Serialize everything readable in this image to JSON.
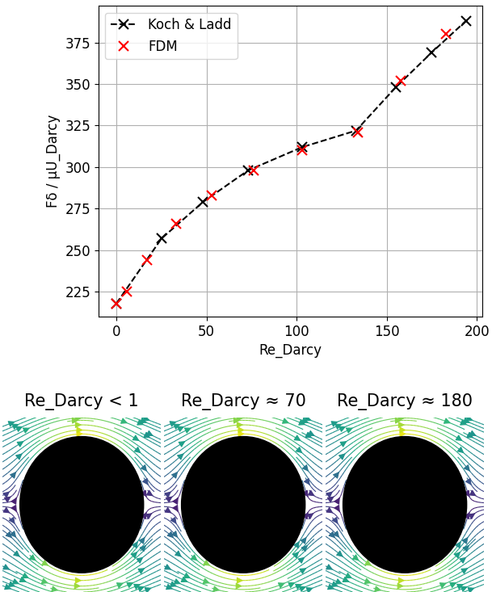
{
  "chart_data": [
    {
      "type": "line",
      "x_label": "Re_Darcy",
      "y_label": "Fδ / μU_Darcy",
      "series": [
        {
          "name": "Koch & Ladd",
          "color": "#000000",
          "marker": "x",
          "line_style": "dashed",
          "x": [
            0,
            25,
            48,
            73,
            103,
            133,
            155,
            175,
            194
          ],
          "values": [
            218,
            257,
            279,
            298,
            312,
            322,
            348,
            369,
            388
          ]
        },
        {
          "name": "FDM",
          "color": "#ff0000",
          "marker": "x",
          "line_style": "none",
          "x": [
            0,
            6,
            17,
            33,
            53,
            76,
            103,
            134,
            158,
            183
          ],
          "values": [
            218,
            225,
            244,
            266,
            283,
            298,
            310,
            321,
            352,
            380
          ]
        }
      ],
      "xlim": [
        -10,
        203
      ],
      "xticks": [
        0,
        50,
        100,
        150,
        200
      ],
      "ylim": [
        210,
        397
      ],
      "yticks": [
        225,
        250,
        275,
        300,
        325,
        350,
        375
      ],
      "grid": true,
      "legend": "upper left"
    },
    {
      "type": "streamlines",
      "title": "Re_Darcy < 1"
    },
    {
      "type": "streamlines",
      "title": "Re_Darcy ≈ 70"
    },
    {
      "type": "streamlines",
      "title": "Re_Darcy ≈ 180"
    }
  ]
}
